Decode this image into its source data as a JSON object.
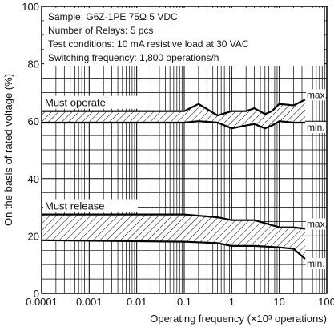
{
  "chart_data": {
    "type": "line",
    "x_scale": "log",
    "xlim": [
      0.0001,
      100
    ],
    "ylim": [
      0,
      100
    ],
    "xlabel": "Operating frequency (×10³ operations)",
    "ylabel": "On the basis of rated voltage (%)",
    "x_ticks": [
      {
        "value": 0.0001,
        "label": "0.0001"
      },
      {
        "value": 0.001,
        "label": "0.001"
      },
      {
        "value": 0.01,
        "label": "0.01"
      },
      {
        "value": 0.1,
        "label": "0.1"
      },
      {
        "value": 1,
        "label": "1"
      },
      {
        "value": 10,
        "label": "10"
      },
      {
        "value": 100,
        "label": "100"
      }
    ],
    "y_ticks": [
      {
        "value": 0,
        "label": "0"
      },
      {
        "value": 20,
        "label": "20"
      },
      {
        "value": 40,
        "label": "40"
      },
      {
        "value": 60,
        "label": "60"
      },
      {
        "value": 80,
        "label": "80"
      },
      {
        "value": 100,
        "label": "100"
      }
    ],
    "grid": true,
    "annotations": [
      "Sample: G6Z-1PE 75Ω 5 VDC",
      "Number of Relays: 5 pcs",
      "Test conditions: 10 mA resistive load at 30 VAC",
      "Switching frequency: 1,800 operations/h"
    ],
    "bands": [
      {
        "name": "Must operate",
        "max_label": "max.",
        "min_label": "min.",
        "max": [
          [
            0.0001,
            63.5
          ],
          [
            0.1,
            63.5
          ],
          [
            0.2,
            66
          ],
          [
            0.5,
            62
          ],
          [
            1,
            63.5
          ],
          [
            2,
            63.5
          ],
          [
            3,
            64.5
          ],
          [
            5,
            62.5
          ],
          [
            7,
            63.5
          ],
          [
            10,
            66
          ],
          [
            20,
            65.5
          ],
          [
            35,
            67.5
          ]
        ],
        "min": [
          [
            0.0001,
            59.5
          ],
          [
            0.1,
            59.5
          ],
          [
            0.2,
            60
          ],
          [
            0.5,
            59.5
          ],
          [
            1,
            57.5
          ],
          [
            2,
            58.5
          ],
          [
            3,
            59
          ],
          [
            5,
            57.5
          ],
          [
            7,
            58.5
          ],
          [
            10,
            60
          ],
          [
            20,
            59.5
          ],
          [
            35,
            59.5
          ]
        ]
      },
      {
        "name": "Must release",
        "max_label": "max.",
        "min_label": "min.",
        "max": [
          [
            0.0001,
            27.5
          ],
          [
            0.1,
            27.5
          ],
          [
            0.5,
            26.5
          ],
          [
            1,
            25.5
          ],
          [
            3,
            25.5
          ],
          [
            10,
            23
          ],
          [
            20,
            23
          ],
          [
            35,
            22.5
          ]
        ],
        "min": [
          [
            0.0001,
            18.5
          ],
          [
            0.1,
            18
          ],
          [
            0.5,
            17.5
          ],
          [
            1,
            16.5
          ],
          [
            3,
            16.5
          ],
          [
            10,
            16
          ],
          [
            20,
            15.5
          ],
          [
            35,
            12
          ]
        ]
      }
    ]
  }
}
